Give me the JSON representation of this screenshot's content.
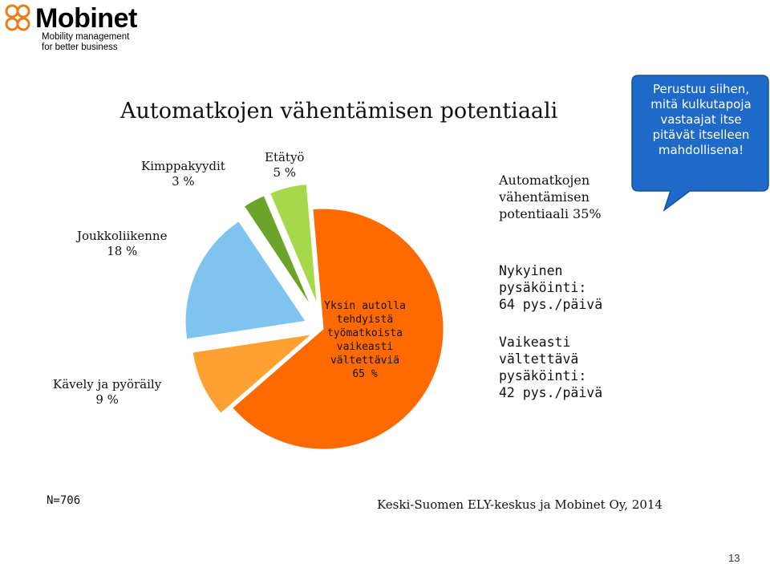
{
  "logo": {
    "name": "Mobinet",
    "tagline_1": "Mobility management",
    "tagline_2": "for better business",
    "color": "#ee7a1a"
  },
  "slide": {
    "title": "Automatkojen vähentämisen potentiaali"
  },
  "chart_data": {
    "type": "pie",
    "title": "",
    "slices": [
      {
        "name": "Yksin autolla tehdyistä työmatkoista vaikeasti vältettäviä",
        "value": 65,
        "label_lines": [
          "Yksin autolla",
          "tehdyistä",
          "työmatkoista",
          "vaikeasti",
          "vältettäviä",
          "65 %"
        ],
        "color": "#ff6a00"
      },
      {
        "name": "Kävely ja pyöräily",
        "value": 9,
        "label_lines": [
          "Kävely ja pyöräily",
          "9 %"
        ],
        "color": "#ffa131"
      },
      {
        "name": "Joukkoliikenne",
        "value": 18,
        "label_lines": [
          "Joukkoliikenne",
          "18 %"
        ],
        "color": "#7ec4ee"
      },
      {
        "name": "Kimppakyydit",
        "value": 3,
        "label_lines": [
          "Kimppakyydit",
          "3 %"
        ],
        "color": "#6aa52a"
      },
      {
        "name": "Etätyö",
        "value": 5,
        "label_lines": [
          "Etätyö",
          "5 %"
        ],
        "color": "#a6d84c"
      }
    ]
  },
  "info": {
    "potential": [
      "Automatkojen",
      "vähentämisen",
      "potentiaali 35%"
    ],
    "current_parking": [
      "Nykyinen",
      "pysäköinti:",
      "64 pys./päivä"
    ],
    "unavoidable_parking": [
      "Vaikeasti",
      "vältettävä",
      "pysäköinti:",
      "42 pys./päivä"
    ]
  },
  "callout": {
    "lines": [
      "Perustuu siihen,",
      "mitä kulkutapoja",
      "vastaajat itse",
      "pitävät itselleen",
      "mahdollisena!"
    ],
    "color": "#1f6ac8"
  },
  "footer": {
    "sample": "N=706",
    "source": "Keski-Suomen ELY-keskus ja Mobinet Oy, 2014",
    "page_number": "13"
  }
}
